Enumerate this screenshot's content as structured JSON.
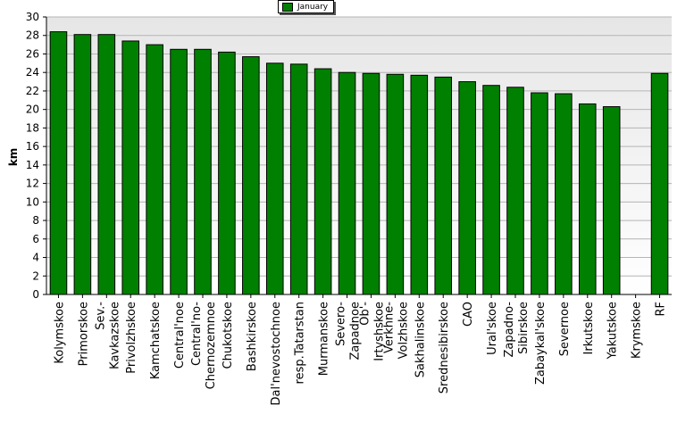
{
  "chart_data": {
    "type": "bar",
    "ylabel": "km",
    "xlabel": "",
    "ylim": [
      0,
      30
    ],
    "yticks": [
      0,
      2,
      4,
      6,
      8,
      10,
      12,
      14,
      16,
      18,
      20,
      22,
      24,
      26,
      28,
      30
    ],
    "grid": true,
    "legend_position": "top-center",
    "categories": [
      "Kolymskoe",
      "Primorskoe",
      "Sev.-Kavkazskoe",
      "Privolzhskoe",
      "Kamchatskoe",
      "Central'noe",
      "Central'no-Chernozemnoe",
      "Chukotskoe",
      "Bashkirskoe",
      "Dal'nevostochnoe",
      "resp.Tatarstan",
      "Murmanskoe",
      "Severo-Zapadnoe",
      "Ob'-Irtyshskoe",
      "Verkhne-Volzhskoe",
      "Sakhalinskoe",
      "Srednesibirskoe",
      "CAO",
      "Ural'skoe",
      "Zapadno-Sibirskoe",
      "Zabaykal'skoe",
      "Severnoe",
      "Irkutskoe",
      "Yakutskoe",
      "Krymskoe",
      "RF"
    ],
    "tick_labels": [
      [
        "Kolymskoe"
      ],
      [
        "Primorskoe"
      ],
      [
        "Sev.-",
        "Kavkazskoe"
      ],
      [
        "Privolzhskoe"
      ],
      [
        "Kamchatskoe"
      ],
      [
        "Central'noe"
      ],
      [
        "Central'no-",
        "Chernozemnoe"
      ],
      [
        "Chukotskoe"
      ],
      [
        "Bashkirskoe"
      ],
      [
        "Dal'nevostochnoe"
      ],
      [
        "resp.Tatarstan"
      ],
      [
        "Murmanskoe"
      ],
      [
        "Severo-",
        "Zapadnoe"
      ],
      [
        "Ob'-",
        "Irtyshskoe"
      ],
      [
        "Verkhne-",
        "Volzhskoe"
      ],
      [
        "Sakhalinskoe"
      ],
      [
        "Srednesibirskoe"
      ],
      [
        "CAO"
      ],
      [
        "Ural'skoe"
      ],
      [
        "Zapadno-",
        "Sibirskoe"
      ],
      [
        "Zabaykal'skoe"
      ],
      [
        "Severnoe"
      ],
      [
        "Irkutskoe"
      ],
      [
        "Yakutskoe"
      ],
      [
        "Krymskoe"
      ],
      [
        "RF"
      ]
    ],
    "series": [
      {
        "name": "January",
        "color": "#008000",
        "values": [
          28.4,
          28.1,
          28.1,
          27.4,
          27.0,
          26.5,
          26.5,
          26.2,
          25.7,
          25.0,
          24.9,
          24.4,
          24.0,
          23.9,
          23.8,
          23.7,
          23.5,
          23.0,
          22.6,
          22.4,
          21.8,
          21.7,
          20.6,
          20.3,
          0,
          23.9
        ]
      }
    ]
  }
}
